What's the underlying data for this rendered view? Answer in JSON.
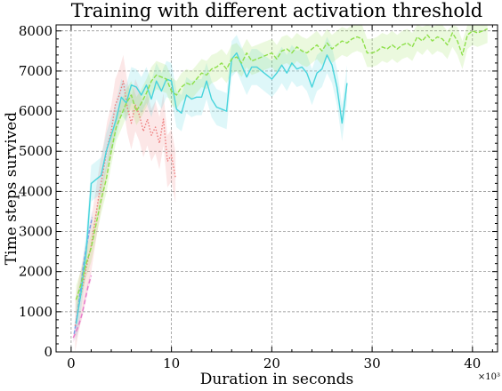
{
  "chart_data": {
    "type": "line",
    "title": "Training with different activation threshold",
    "xlabel": "Duration in seconds",
    "ylabel": "Time steps survived",
    "x_multiplier_label": "×10³",
    "xlim": [
      -1.5,
      42.5
    ],
    "ylim": [
      0,
      8150
    ],
    "x_ticks": [
      0,
      10,
      20,
      30,
      40
    ],
    "y_ticks": [
      0,
      1000,
      2000,
      3000,
      4000,
      5000,
      6000,
      7000,
      8000
    ],
    "grid": true,
    "legend": "none",
    "series": [
      {
        "color": "#e879c9",
        "dash": "5 3",
        "band": 120,
        "points": [
          [
            0.2,
            350
          ],
          [
            0.5,
            500
          ],
          [
            0.8,
            700
          ],
          [
            1.1,
            950
          ],
          [
            1.4,
            1300
          ],
          [
            1.7,
            1650
          ],
          [
            2.0,
            1900
          ]
        ]
      },
      {
        "color": "#7a9ee8",
        "dash": "4 2",
        "band": 180,
        "points": [
          [
            0.3,
            450
          ],
          [
            0.6,
            900
          ],
          [
            0.9,
            1500
          ],
          [
            1.2,
            2100
          ],
          [
            1.5,
            2600
          ],
          [
            1.8,
            3000
          ],
          [
            2.1,
            3350
          ]
        ]
      },
      {
        "color": "#ee7c7c",
        "dash": "1.5 2",
        "band": 650,
        "points": [
          [
            0.4,
            650
          ],
          [
            0.8,
            1200
          ],
          [
            1.2,
            1700
          ],
          [
            1.6,
            2200
          ],
          [
            2.0,
            2650
          ],
          [
            2.4,
            3300
          ],
          [
            2.8,
            3950
          ],
          [
            3.2,
            4500
          ],
          [
            3.6,
            5100
          ],
          [
            4.0,
            5500
          ],
          [
            4.4,
            6150
          ],
          [
            4.8,
            6400
          ],
          [
            5.2,
            6750
          ],
          [
            5.6,
            6100
          ],
          [
            6.0,
            5700
          ],
          [
            6.4,
            6150
          ],
          [
            6.8,
            5900
          ],
          [
            7.2,
            5500
          ],
          [
            7.6,
            5800
          ],
          [
            8.0,
            5400
          ],
          [
            8.4,
            5600
          ],
          [
            8.8,
            5200
          ],
          [
            9.2,
            5800
          ],
          [
            9.6,
            4750
          ],
          [
            10.0,
            4900
          ],
          [
            10.4,
            4350
          ]
        ]
      },
      {
        "color": "#47d4dc",
        "dash": "",
        "band": 450,
        "points": [
          [
            0.5,
            700
          ],
          [
            1.0,
            1500
          ],
          [
            1.5,
            2500
          ],
          [
            2.0,
            4200
          ],
          [
            2.5,
            4300
          ],
          [
            3.0,
            4400
          ],
          [
            3.5,
            5000
          ],
          [
            4.0,
            5400
          ],
          [
            4.5,
            5800
          ],
          [
            5.0,
            6350
          ],
          [
            5.5,
            6200
          ],
          [
            6.0,
            6650
          ],
          [
            6.5,
            6600
          ],
          [
            7.0,
            6400
          ],
          [
            7.5,
            6650
          ],
          [
            8.0,
            6300
          ],
          [
            8.5,
            6750
          ],
          [
            9.0,
            6500
          ],
          [
            9.5,
            6800
          ],
          [
            10.0,
            6750
          ],
          [
            10.5,
            6050
          ],
          [
            11.0,
            5950
          ],
          [
            11.5,
            6400
          ],
          [
            12.0,
            6300
          ],
          [
            12.5,
            6350
          ],
          [
            13.0,
            6350
          ],
          [
            13.5,
            6750
          ],
          [
            14.0,
            6300
          ],
          [
            14.5,
            6100
          ],
          [
            15.0,
            6050
          ],
          [
            15.5,
            6000
          ],
          [
            16.0,
            7300
          ],
          [
            16.5,
            7450
          ],
          [
            17.0,
            7150
          ],
          [
            17.5,
            6850
          ],
          [
            18.0,
            7100
          ],
          [
            18.5,
            7100
          ],
          [
            19.0,
            7000
          ],
          [
            19.5,
            6900
          ],
          [
            20.0,
            6800
          ],
          [
            20.5,
            6950
          ],
          [
            21.0,
            7150
          ],
          [
            21.5,
            6950
          ],
          [
            22.0,
            7200
          ],
          [
            22.5,
            7050
          ],
          [
            23.0,
            7100
          ],
          [
            23.5,
            6950
          ],
          [
            24.0,
            6600
          ],
          [
            24.5,
            6950
          ],
          [
            25.0,
            7050
          ],
          [
            25.5,
            7400
          ],
          [
            26.0,
            7150
          ],
          [
            26.5,
            6600
          ],
          [
            27.0,
            5700
          ],
          [
            27.5,
            6700
          ]
        ]
      },
      {
        "color": "#8ee04a",
        "dash": "5 2",
        "band": 350,
        "points": [
          [
            0.5,
            1300
          ],
          [
            1.0,
            1700
          ],
          [
            1.5,
            2200
          ],
          [
            2.0,
            2600
          ],
          [
            2.5,
            3200
          ],
          [
            3.0,
            3800
          ],
          [
            3.5,
            4300
          ],
          [
            4.0,
            5000
          ],
          [
            4.5,
            5600
          ],
          [
            5.0,
            5900
          ],
          [
            5.5,
            6200
          ],
          [
            6.0,
            6400
          ],
          [
            6.5,
            6000
          ],
          [
            7.0,
            6200
          ],
          [
            7.5,
            6450
          ],
          [
            8.0,
            6750
          ],
          [
            8.5,
            6900
          ],
          [
            9.0,
            6850
          ],
          [
            9.5,
            6800
          ],
          [
            10.0,
            6500
          ],
          [
            10.5,
            6400
          ],
          [
            11.0,
            6600
          ],
          [
            11.5,
            6700
          ],
          [
            12.0,
            6650
          ],
          [
            12.5,
            6800
          ],
          [
            13.0,
            6950
          ],
          [
            13.5,
            6900
          ],
          [
            14.0,
            7050
          ],
          [
            14.5,
            7100
          ],
          [
            15.0,
            7200
          ],
          [
            15.5,
            7050
          ],
          [
            16.0,
            7300
          ],
          [
            16.5,
            7350
          ],
          [
            17.0,
            7200
          ],
          [
            17.5,
            7450
          ],
          [
            18.0,
            7250
          ],
          [
            18.5,
            7300
          ],
          [
            19.0,
            7350
          ],
          [
            19.5,
            7400
          ],
          [
            20.0,
            7450
          ],
          [
            20.5,
            7300
          ],
          [
            21.0,
            7500
          ],
          [
            21.5,
            7550
          ],
          [
            22.0,
            7450
          ],
          [
            22.5,
            7600
          ],
          [
            23.0,
            7500
          ],
          [
            23.5,
            7450
          ],
          [
            24.0,
            7550
          ],
          [
            24.5,
            7650
          ],
          [
            25.0,
            7500
          ],
          [
            25.5,
            7700
          ],
          [
            26.0,
            7550
          ],
          [
            26.5,
            7650
          ],
          [
            27.0,
            7750
          ],
          [
            27.5,
            7700
          ],
          [
            28.0,
            7800
          ],
          [
            28.5,
            7850
          ],
          [
            29.0,
            7800
          ],
          [
            29.5,
            7450
          ],
          [
            30.0,
            7450
          ],
          [
            30.5,
            7500
          ],
          [
            31.0,
            7600
          ],
          [
            31.5,
            7550
          ],
          [
            32.0,
            7650
          ],
          [
            32.5,
            7550
          ],
          [
            33.0,
            7650
          ],
          [
            33.5,
            7700
          ],
          [
            34.0,
            7600
          ],
          [
            34.5,
            7850
          ],
          [
            35.0,
            7750
          ],
          [
            35.5,
            7900
          ],
          [
            36.0,
            7750
          ],
          [
            36.5,
            7850
          ],
          [
            37.0,
            7800
          ],
          [
            37.5,
            7650
          ],
          [
            38.0,
            7950
          ],
          [
            38.5,
            7750
          ],
          [
            39.0,
            7400
          ],
          [
            39.5,
            7900
          ],
          [
            40.0,
            8000
          ],
          [
            40.5,
            7950
          ],
          [
            41.0,
            8000
          ],
          [
            41.5,
            8050
          ]
        ]
      }
    ]
  }
}
